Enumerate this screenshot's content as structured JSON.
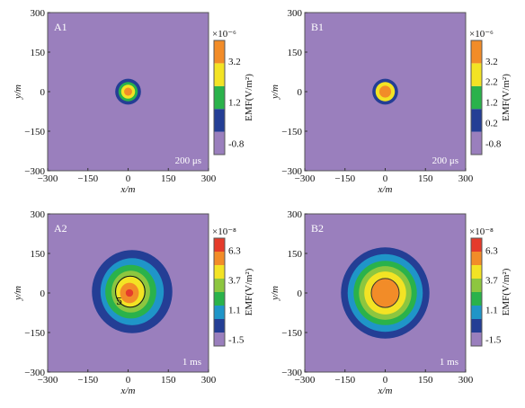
{
  "figure": {
    "colors": {
      "background": "#9a7fbd",
      "navy": "#243e95",
      "teal": "#1f95c8",
      "green": "#2ab24b",
      "lightgreen": "#8dc63f",
      "yellow": "#f3e324",
      "orange": "#f28c28",
      "red": "#e53b2b"
    }
  },
  "chart_data": [
    {
      "panel": "A1",
      "type": "heatmap",
      "time_label": "200 μs",
      "xlabel": "x/m",
      "ylabel": "y/m",
      "xlim": [
        -300,
        300
      ],
      "ylim": [
        -300,
        300
      ],
      "xticks": [
        "−300",
        "−150",
        "0",
        "150",
        "300"
      ],
      "yticks": [
        "300",
        "150",
        "0",
        "−150",
        "−300"
      ],
      "colorbar": {
        "exponent": "×10⁻⁶",
        "unit_label": "EMF(V/m²)",
        "tick_labels": [
          "3.2",
          "1.2",
          "-0.8"
        ],
        "levels": [
          "#9a7fbd",
          "#243e95",
          "#2ab24b",
          "#f3e324",
          "#f28c28"
        ]
      },
      "contours": [
        {
          "color": "#243e95",
          "rx": 48,
          "ry": 48,
          "cx": 0,
          "cy": 0
        },
        {
          "color": "#2ab24b",
          "rx": 36,
          "ry": 36,
          "cx": 0,
          "cy": 0
        },
        {
          "color": "#f3e324",
          "rx": 26,
          "ry": 26,
          "cx": 0,
          "cy": 0
        },
        {
          "color": "#f28c28",
          "rx": 15,
          "ry": 15,
          "cx": 0,
          "cy": 0
        }
      ]
    },
    {
      "panel": "B1",
      "type": "heatmap",
      "time_label": "200 μs",
      "xlabel": "x/m",
      "ylabel": "y/m",
      "xlim": [
        -300,
        300
      ],
      "ylim": [
        -300,
        300
      ],
      "xticks": [
        "−300",
        "−150",
        "0",
        "150",
        "300"
      ],
      "yticks": [
        "300",
        "150",
        "0",
        "−150",
        "−300"
      ],
      "colorbar": {
        "exponent": "×10⁻⁶",
        "unit_label": "EMF(V/m²)",
        "tick_labels": [
          "3.2",
          "2.2",
          "1.2",
          "0.2",
          "-0.8"
        ],
        "levels": [
          "#9a7fbd",
          "#243e95",
          "#2ab24b",
          "#f3e324",
          "#f28c28"
        ]
      },
      "contours": [
        {
          "color": "#243e95",
          "rx": 48,
          "ry": 48,
          "cx": 0,
          "cy": 0
        },
        {
          "color": "#f3e324",
          "rx": 36,
          "ry": 36,
          "cx": 0,
          "cy": 0
        },
        {
          "color": "#f28c28",
          "rx": 22,
          "ry": 22,
          "cx": 0,
          "cy": 0
        }
      ]
    },
    {
      "panel": "A2",
      "type": "heatmap",
      "time_label": "1 ms",
      "contour_label": "5",
      "xlabel": "x/m",
      "ylabel": "y/m",
      "xlim": [
        -300,
        300
      ],
      "ylim": [
        -300,
        300
      ],
      "xticks": [
        "−300",
        "−150",
        "0",
        "150",
        "300"
      ],
      "yticks": [
        "300",
        "150",
        "0",
        "−150",
        "−300"
      ],
      "colorbar": {
        "exponent": "×10⁻⁸",
        "unit_label": "EMF(V/m²)",
        "tick_labels": [
          "6.3",
          "3.7",
          "1.1",
          "-1.5"
        ],
        "levels": [
          "#9a7fbd",
          "#243e95",
          "#1f95c8",
          "#2ab24b",
          "#8dc63f",
          "#f3e324",
          "#f28c28",
          "#e53b2b"
        ]
      },
      "contours": [
        {
          "color": "#243e95",
          "rx": 150,
          "ry": 155,
          "cx": 15,
          "cy": 5
        },
        {
          "color": "#1f95c8",
          "rx": 118,
          "ry": 125,
          "cx": 15,
          "cy": 5
        },
        {
          "color": "#2ab24b",
          "rx": 95,
          "ry": 100,
          "cx": 10,
          "cy": 5
        },
        {
          "color": "#8dc63f",
          "rx": 72,
          "ry": 78,
          "cx": 10,
          "cy": 5
        },
        {
          "color": "#f3e324",
          "rx": 52,
          "ry": 56,
          "cx": 8,
          "cy": 5
        },
        {
          "color": "#f28c28",
          "rx": 35,
          "ry": 38,
          "cx": 5,
          "cy": 0
        },
        {
          "color": "#e53b2b",
          "rx": 14,
          "ry": 14,
          "cx": 5,
          "cy": 0
        }
      ]
    },
    {
      "panel": "B2",
      "type": "heatmap",
      "time_label": "1 ms",
      "xlabel": "x/m",
      "ylabel": "y/m",
      "xlim": [
        -300,
        300
      ],
      "ylim": [
        -300,
        300
      ],
      "xticks": [
        "−300",
        "−150",
        "0",
        "150",
        "300"
      ],
      "yticks": [
        "300",
        "150",
        "0",
        "−150",
        "−300"
      ],
      "colorbar": {
        "exponent": "×10⁻⁸",
        "unit_label": "EMF(V/m²)",
        "tick_labels": [
          "6.3",
          "3.7",
          "1.1",
          "-1.5"
        ],
        "levels": [
          "#9a7fbd",
          "#243e95",
          "#1f95c8",
          "#2ab24b",
          "#8dc63f",
          "#f3e324",
          "#f28c28",
          "#e53b2b"
        ]
      },
      "contours": [
        {
          "color": "#243e95",
          "rx": 165,
          "ry": 170,
          "cx": 0,
          "cy": 0
        },
        {
          "color": "#1f95c8",
          "rx": 140,
          "ry": 145,
          "cx": 0,
          "cy": 0
        },
        {
          "color": "#2ab24b",
          "rx": 118,
          "ry": 120,
          "cx": 0,
          "cy": 0
        },
        {
          "color": "#8dc63f",
          "rx": 98,
          "ry": 100,
          "cx": 0,
          "cy": 0
        },
        {
          "color": "#f3e324",
          "rx": 78,
          "ry": 80,
          "cx": 0,
          "cy": 0
        },
        {
          "color": "#f28c28",
          "rx": 52,
          "ry": 54,
          "cx": 0,
          "cy": 0
        }
      ]
    }
  ]
}
